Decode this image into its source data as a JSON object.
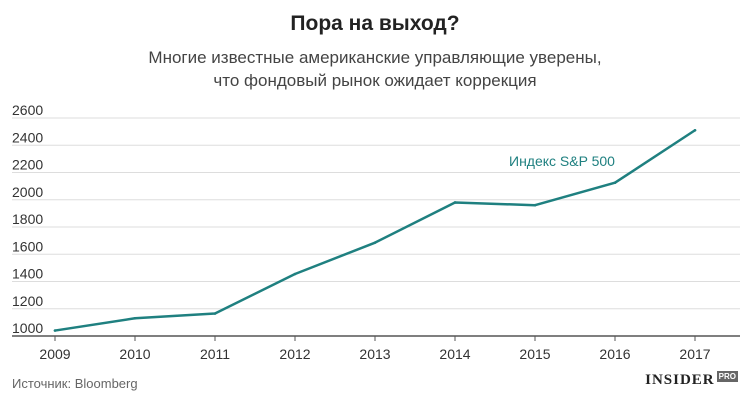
{
  "header": {
    "title": "Пора на выход?",
    "subtitle_line1": "Многие известные американские управляющие уверены,",
    "subtitle_line2": "что фондовый рынок ожидает коррекция"
  },
  "footer": {
    "source": "Источник: Bloomberg",
    "logo_text": "INSIDER",
    "logo_badge": "PRO"
  },
  "chart_data": {
    "type": "line",
    "title": "Пора на выход?",
    "x": [
      "2009",
      "2010",
      "2011",
      "2012",
      "2013",
      "2014",
      "2015",
      "2016",
      "2017"
    ],
    "series": [
      {
        "name": "Индекс S&P 500",
        "color": "#1f8080",
        "values": [
          1040,
          1130,
          1165,
          1455,
          1685,
          1980,
          1960,
          2125,
          2510
        ]
      }
    ],
    "xlim": [
      2009,
      2017
    ],
    "ylim": [
      1000,
      2600
    ],
    "yticks": [
      1000,
      1200,
      1400,
      1600,
      1800,
      2000,
      2200,
      2400,
      2600
    ],
    "xlabel": "",
    "ylabel": "",
    "grid": true
  }
}
